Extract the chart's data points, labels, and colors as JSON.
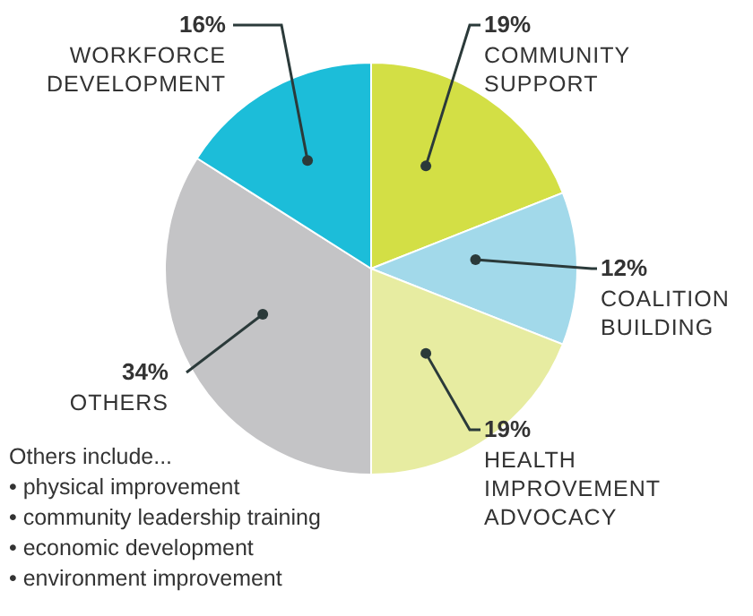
{
  "chart_data": {
    "type": "pie",
    "categories": [
      "COMMUNITY SUPPORT",
      "COALITION BUILDING",
      "HEALTH IMPROVEMENT ADVOCACY",
      "OTHERS",
      "WORKFORCE DEVELOPMENT"
    ],
    "values": [
      19,
      12,
      19,
      34,
      16
    ],
    "value_labels": [
      "19%",
      "12%",
      "19%",
      "34%",
      "16%"
    ],
    "colors": [
      "#d3df45",
      "#a2d9ea",
      "#e7eca1",
      "#c4c4c6",
      "#1cbdd9"
    ],
    "annotations": [
      "Others include...",
      "• physical improvement",
      "• community leadership training",
      "• economic development",
      "• environment improvement"
    ]
  }
}
